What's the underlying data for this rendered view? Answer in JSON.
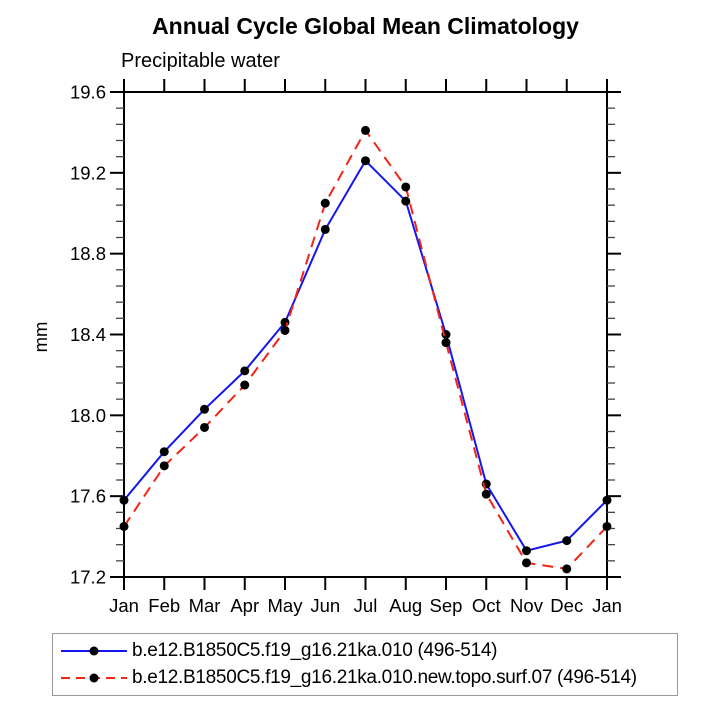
{
  "chart_data": {
    "type": "line",
    "title": "Annual Cycle Global Mean Climatology",
    "subtitle": "Precipitable water",
    "ylabel": "mm",
    "xlabel": "",
    "categories": [
      "Jan",
      "Feb",
      "Mar",
      "Apr",
      "May",
      "Jun",
      "Jul",
      "Aug",
      "Sep",
      "Oct",
      "Nov",
      "Dec",
      "Jan"
    ],
    "ylim": [
      17.2,
      19.6
    ],
    "yticks": [
      17.2,
      17.6,
      18.0,
      18.4,
      18.8,
      19.2,
      19.6
    ],
    "minor_tick_step": 0.08,
    "grid": false,
    "legend_position": "bottom",
    "axis_color": "#000000",
    "marker_color": "#000000",
    "series": [
      {
        "name": "b.e12.B1850C5.f19_g16.21ka.010 (496-514)",
        "color": "#1515ef",
        "style": "solid",
        "marker": "circle",
        "values": [
          17.58,
          17.82,
          18.03,
          18.22,
          18.46,
          18.92,
          19.26,
          19.06,
          18.4,
          17.66,
          17.33,
          17.38,
          17.58
        ]
      },
      {
        "name": "b.e12.B1850C5.f19_g16.21ka.010.new.topo.surf.07 (496-514)",
        "color": "#f32516",
        "style": "dashed",
        "marker": "circle",
        "values": [
          17.45,
          17.75,
          17.94,
          18.15,
          18.42,
          19.05,
          19.41,
          19.13,
          18.36,
          17.61,
          17.27,
          17.24,
          17.45
        ]
      }
    ]
  }
}
